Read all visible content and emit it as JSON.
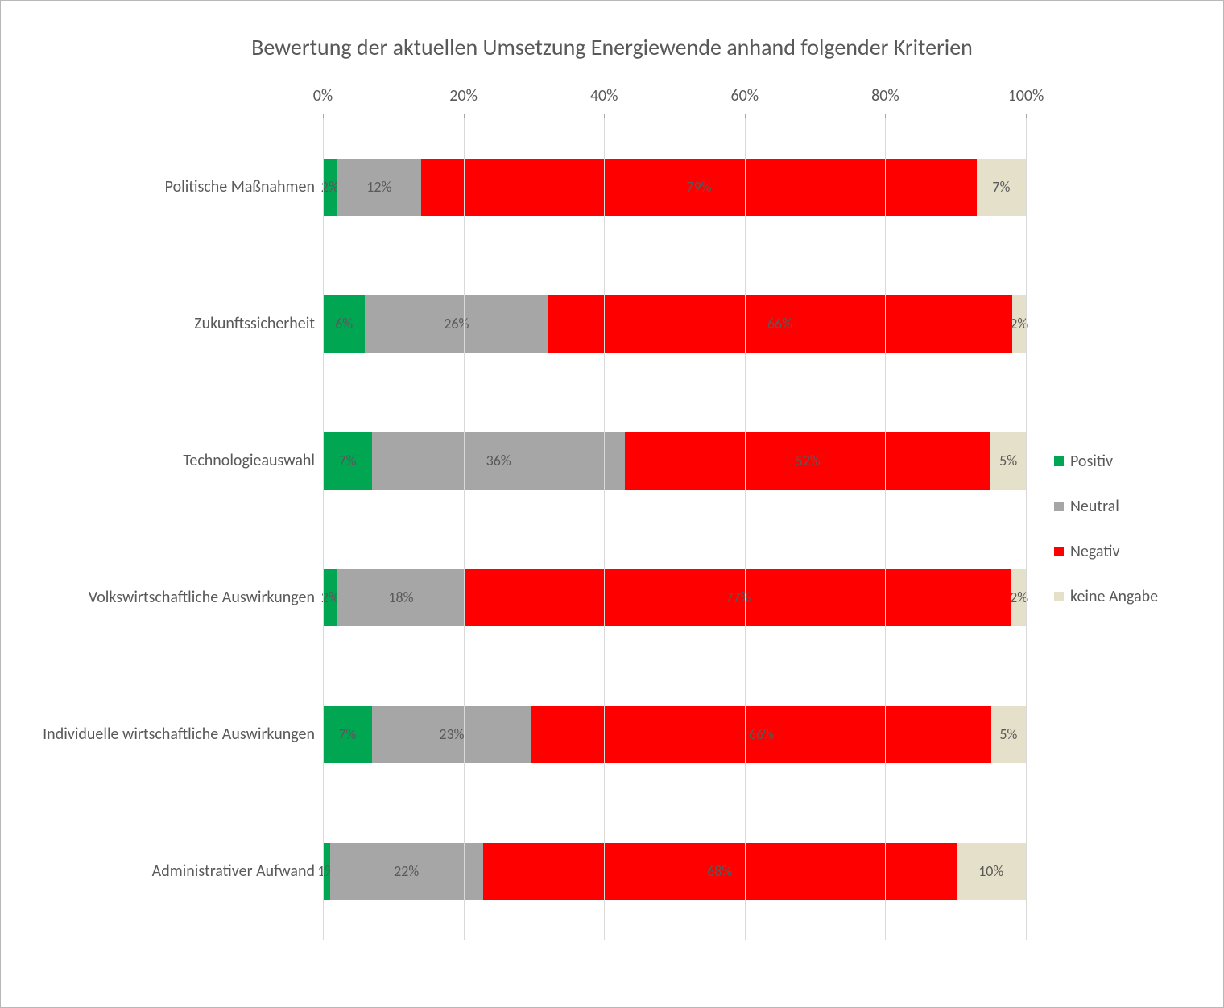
{
  "chart": {
    "type": "stacked-horizontal-bar",
    "title": "Bewertung der aktuellen Umsetzung Energiewende anhand folgender Kriterien",
    "title_fontsize": 28,
    "title_color": "#595959",
    "background_color": "#ffffff",
    "border_color": "#b8b8b8",
    "grid_color": "#d9d9d9",
    "tick_color": "#a6a6a6",
    "label_color": "#595959",
    "label_fontsize": 20,
    "datalabel_fontsize": 18,
    "xlim": [
      0,
      100
    ],
    "xtick_step": 20,
    "xticks": [
      {
        "value": 0,
        "label": "0%"
      },
      {
        "value": 20,
        "label": "20%"
      },
      {
        "value": 40,
        "label": "40%"
      },
      {
        "value": 60,
        "label": "60%"
      },
      {
        "value": 80,
        "label": "80%"
      },
      {
        "value": 100,
        "label": "100%"
      }
    ],
    "bar_height_ratio": 0.42,
    "series": [
      {
        "key": "positiv",
        "label": "Positiv",
        "color": "#00a651"
      },
      {
        "key": "neutral",
        "label": "Neutral",
        "color": "#a6a6a6"
      },
      {
        "key": "negativ",
        "label": "Negativ",
        "color": "#ff0000"
      },
      {
        "key": "keine_angabe",
        "label": "keine Angabe",
        "color": "#e5e0c9"
      }
    ],
    "categories": [
      {
        "label": "Politische Maßnahmen",
        "values": {
          "positiv": 2,
          "neutral": 12,
          "negativ": 79,
          "keine_angabe": 7
        },
        "display": {
          "positiv": "2%",
          "neutral": "12%",
          "negativ": "79%",
          "keine_angabe": "7%"
        }
      },
      {
        "label": "Zukunftssicherheit",
        "values": {
          "positiv": 6,
          "neutral": 26,
          "negativ": 66,
          "keine_angabe": 2
        },
        "display": {
          "positiv": "6%",
          "neutral": "26%",
          "negativ": "66%",
          "keine_angabe": "2%"
        }
      },
      {
        "label": "Technologieauswahl",
        "values": {
          "positiv": 7,
          "neutral": 36,
          "negativ": 52,
          "keine_angabe": 5
        },
        "display": {
          "positiv": "7%",
          "neutral": "36%",
          "negativ": "52%",
          "keine_angabe": "5%"
        }
      },
      {
        "label": "Volkswirtschaftliche Auswirkungen",
        "values": {
          "positiv": 2,
          "neutral": 18,
          "negativ": 77,
          "keine_angabe": 2
        },
        "display": {
          "positiv": "2%",
          "neutral": "18%",
          "negativ": "77%",
          "keine_angabe": "2%"
        }
      },
      {
        "label": "Individuelle wirtschaftliche Auswirkungen",
        "values": {
          "positiv": 7,
          "neutral": 23,
          "negativ": 66,
          "keine_angabe": 5
        },
        "display": {
          "positiv": "7%",
          "neutral": "23%",
          "negativ": "66%",
          "keine_angabe": "5%"
        }
      },
      {
        "label": "Administrativer Aufwand",
        "values": {
          "positiv": 1,
          "neutral": 22,
          "negativ": 68,
          "keine_angabe": 10
        },
        "display": {
          "positiv": "1%",
          "neutral": "22%",
          "negativ": "68%",
          "keine_angabe": "10%"
        }
      }
    ]
  }
}
